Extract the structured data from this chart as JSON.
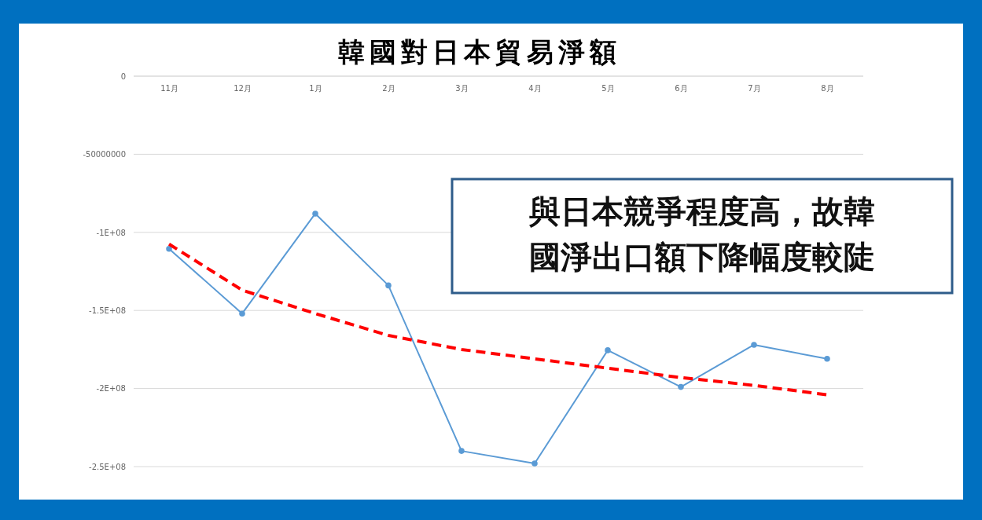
{
  "chart_data": {
    "type": "line",
    "title": "韓國對日本貿易淨額",
    "categories": [
      "11月",
      "12月",
      "1月",
      "2月",
      "3月",
      "4月",
      "5月",
      "6月",
      "7月",
      "8月"
    ],
    "series": [
      {
        "color": "#5b9bd5",
        "marker": "circle",
        "values": [
          -110500000,
          -152000000,
          -88000000,
          -134000000,
          -240000000,
          -248000000,
          -175500000,
          -199000000,
          -172000000,
          -181000000
        ]
      },
      {
        "type": "line",
        "color": "#ff0000",
        "line_style": "dashed",
        "marker": "none",
        "x": [
          "11月",
          "12月",
          "1月",
          "2月",
          "3月",
          "4月",
          "5月",
          "6月",
          "7月",
          "8月"
        ],
        "values": [
          -107500000,
          -137000000,
          -152000000,
          -166000000,
          -175000000,
          -181000000,
          -187000000,
          -193000000,
          -198000000,
          -204000000
        ]
      }
    ],
    "ylim": [
      -250000000,
      0
    ],
    "yticks": [
      0,
      -50000000,
      {
        "value": -100000000,
        "label": "-1E+08"
      },
      {
        "value": -150000000,
        "label": "-1.5E+08"
      },
      {
        "value": -200000000,
        "label": "-2E+08"
      },
      {
        "value": -250000000,
        "label": "-2.5E+08"
      }
    ],
    "grid": "y",
    "annotations": [
      "與日本競爭程度高，故韓國淨出口額下降幅度較陡"
    ]
  }
}
